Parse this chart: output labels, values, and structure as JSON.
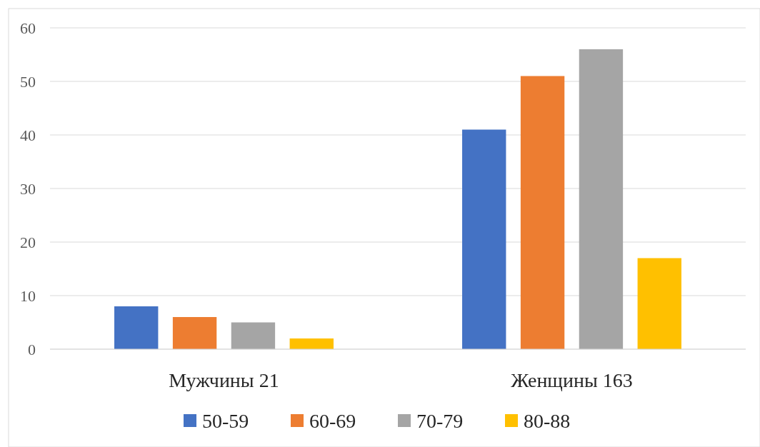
{
  "chart_data": {
    "type": "bar",
    "categories": [
      "Мужчины 21",
      "Женщины 163"
    ],
    "series": [
      {
        "name": "50-59",
        "color": "#4472c4",
        "values": [
          8,
          41
        ]
      },
      {
        "name": "60-69",
        "color": "#ed7d31",
        "values": [
          6,
          51
        ]
      },
      {
        "name": "70-79",
        "color": "#a5a5a5",
        "values": [
          5,
          56
        ]
      },
      {
        "name": "80-88",
        "color": "#ffc000",
        "values": [
          2,
          17
        ]
      }
    ],
    "ylim": [
      0,
      60
    ],
    "yticks": [
      0,
      10,
      20,
      30,
      40,
      50,
      60
    ],
    "grid": "y",
    "legend": "bottom"
  }
}
